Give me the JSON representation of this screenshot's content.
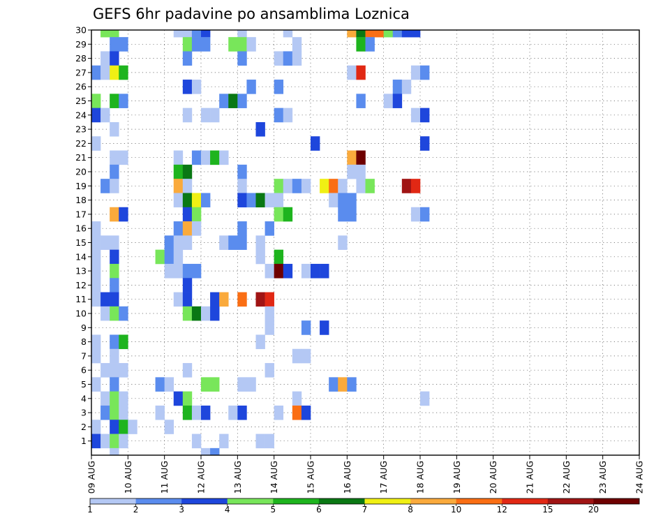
{
  "chart_data": {
    "type": "heatmap",
    "title": "GEFS 6hr padavine po ansamblima Loznica",
    "x_tick_labels": [
      "09 AUG",
      "10 AUG",
      "11 AUG",
      "12 AUG",
      "13 AUG",
      "14 AUG",
      "15 AUG",
      "16 AUG",
      "17 AUG",
      "18 AUG",
      "19 AUG",
      "20 AUG",
      "21 AUG",
      "22 AUG",
      "23 AUG",
      "24 AUG"
    ],
    "y_range": [
      0,
      30
    ],
    "y_tick_labels": [
      "1",
      "2",
      "3",
      "4",
      "5",
      "6",
      "7",
      "8",
      "9",
      "10",
      "11",
      "12",
      "13",
      "14",
      "15",
      "16",
      "17",
      "18",
      "19",
      "20",
      "21",
      "22",
      "23",
      "24",
      "25",
      "26",
      "27",
      "28",
      "29",
      "30"
    ],
    "step_hours": 6,
    "grid": "dotted",
    "legend": {
      "placement": "bottom",
      "labels": [
        "1",
        "2",
        "3",
        "4",
        "5",
        "6",
        "7",
        "8",
        "10",
        "12",
        "15",
        "20"
      ],
      "colors": [
        "#b4c8f4",
        "#5a8cee",
        "#1e46dc",
        "#78e65a",
        "#1eb41e",
        "#0a7814",
        "#f0f014",
        "#faaa3c",
        "#fa6e14",
        "#e12814",
        "#a01414",
        "#6e0000"
      ]
    },
    "level_colors": {
      "1": "#b4c8f4",
      "2": "#5a8cee",
      "3": "#1e46dc",
      "4": "#78e65a",
      "5": "#1eb41e",
      "6": "#0a7814",
      "7": "#f0f014",
      "8": "#faaa3c",
      "9": "#fa6e14",
      "10": "#e12814",
      "11": "#a01414",
      "12": "#6e0000"
    },
    "cells": [
      [
        30,
        0,
        1,
        4
      ],
      [
        30,
        0,
        2,
        4
      ],
      [
        30,
        0,
        9,
        1
      ],
      [
        30,
        0,
        10,
        1
      ],
      [
        30,
        0,
        11,
        2
      ],
      [
        30,
        0,
        12,
        3
      ],
      [
        30,
        0,
        16,
        1
      ],
      [
        30,
        0,
        21,
        1
      ],
      [
        30,
        0,
        28,
        8
      ],
      [
        30,
        0,
        29,
        6
      ],
      [
        30,
        0,
        30,
        9
      ],
      [
        30,
        0,
        31,
        9
      ],
      [
        30,
        0,
        32,
        4
      ],
      [
        30,
        0,
        33,
        2
      ],
      [
        30,
        0,
        34,
        3
      ],
      [
        30,
        0,
        35,
        3
      ],
      [
        29,
        0,
        2,
        2
      ],
      [
        29,
        0,
        3,
        2
      ],
      [
        29,
        0,
        10,
        4
      ],
      [
        29,
        0,
        11,
        2
      ],
      [
        29,
        0,
        12,
        2
      ],
      [
        29,
        0,
        15,
        4
      ],
      [
        29,
        0,
        16,
        4
      ],
      [
        29,
        0,
        17,
        1
      ],
      [
        29,
        0,
        22,
        1
      ],
      [
        29,
        0,
        29,
        5
      ],
      [
        29,
        0,
        30,
        2
      ],
      [
        28,
        0,
        1,
        1
      ],
      [
        28,
        0,
        2,
        3
      ],
      [
        28,
        0,
        10,
        2
      ],
      [
        28,
        0,
        16,
        2
      ],
      [
        28,
        0,
        20,
        1
      ],
      [
        28,
        0,
        21,
        2
      ],
      [
        28,
        0,
        22,
        1
      ],
      [
        27,
        0,
        0,
        2
      ],
      [
        27,
        0,
        1,
        1
      ],
      [
        27,
        0,
        2,
        7
      ],
      [
        27,
        0,
        3,
        5
      ],
      [
        27,
        0,
        28,
        1
      ],
      [
        27,
        0,
        29,
        10
      ],
      [
        27,
        0,
        35,
        1
      ],
      [
        27,
        0,
        36,
        2
      ],
      [
        26,
        0,
        10,
        3
      ],
      [
        26,
        0,
        11,
        1
      ],
      [
        26,
        0,
        17,
        2
      ],
      [
        26,
        0,
        20,
        2
      ],
      [
        26,
        0,
        33,
        2
      ],
      [
        26,
        0,
        34,
        1
      ],
      [
        25,
        0,
        0,
        4
      ],
      [
        25,
        0,
        2,
        5
      ],
      [
        25,
        0,
        3,
        2
      ],
      [
        25,
        0,
        14,
        2
      ],
      [
        25,
        0,
        15,
        6
      ],
      [
        25,
        0,
        16,
        2
      ],
      [
        25,
        0,
        29,
        2
      ],
      [
        25,
        0,
        32,
        1
      ],
      [
        25,
        0,
        33,
        3
      ],
      [
        24,
        0,
        0,
        3
      ],
      [
        24,
        0,
        1,
        1
      ],
      [
        24,
        0,
        10,
        1
      ],
      [
        24,
        0,
        12,
        1
      ],
      [
        24,
        0,
        13,
        1
      ],
      [
        24,
        0,
        20,
        2
      ],
      [
        24,
        0,
        21,
        1
      ],
      [
        24,
        0,
        35,
        1
      ],
      [
        24,
        0,
        36,
        3
      ],
      [
        23,
        0,
        2,
        1
      ],
      [
        23,
        0,
        18,
        3
      ],
      [
        22,
        0,
        0,
        1
      ],
      [
        22,
        0,
        24,
        3
      ],
      [
        22,
        0,
        36,
        3
      ],
      [
        21,
        0,
        2,
        1
      ],
      [
        21,
        0,
        3,
        1
      ],
      [
        21,
        0,
        9,
        1
      ],
      [
        21,
        0,
        11,
        2
      ],
      [
        21,
        0,
        12,
        1
      ],
      [
        21,
        0,
        13,
        5
      ],
      [
        21,
        0,
        14,
        1
      ],
      [
        21,
        0,
        28,
        8
      ],
      [
        21,
        0,
        29,
        12
      ],
      [
        20,
        0,
        2,
        2
      ],
      [
        20,
        0,
        9,
        5
      ],
      [
        20,
        0,
        10,
        6
      ],
      [
        20,
        0,
        16,
        2
      ],
      [
        20,
        0,
        28,
        1
      ],
      [
        20,
        0,
        29,
        1
      ],
      [
        19,
        0,
        1,
        2
      ],
      [
        19,
        0,
        2,
        1
      ],
      [
        19,
        0,
        9,
        8
      ],
      [
        19,
        0,
        10,
        1
      ],
      [
        19,
        0,
        16,
        1
      ],
      [
        19,
        0,
        20,
        4
      ],
      [
        19,
        0,
        21,
        1
      ],
      [
        19,
        0,
        22,
        2
      ],
      [
        19,
        0,
        23,
        1
      ],
      [
        19,
        0,
        25,
        7
      ],
      [
        19,
        0,
        26,
        9
      ],
      [
        19,
        0,
        27,
        1
      ],
      [
        19,
        0,
        29,
        1
      ],
      [
        19,
        0,
        30,
        4
      ],
      [
        19,
        0,
        34,
        11
      ],
      [
        19,
        0,
        35,
        10
      ],
      [
        18,
        0,
        9,
        1
      ],
      [
        18,
        0,
        10,
        6
      ],
      [
        18,
        0,
        11,
        7
      ],
      [
        18,
        0,
        12,
        2
      ],
      [
        18,
        0,
        16,
        3
      ],
      [
        18,
        0,
        17,
        2
      ],
      [
        18,
        0,
        18,
        6
      ],
      [
        18,
        0,
        19,
        1
      ],
      [
        18,
        0,
        20,
        1
      ],
      [
        18,
        0,
        26,
        1
      ],
      [
        18,
        0,
        27,
        2
      ],
      [
        18,
        0,
        28,
        2
      ],
      [
        17,
        0,
        2,
        8
      ],
      [
        17,
        0,
        3,
        3
      ],
      [
        17,
        0,
        10,
        3
      ],
      [
        17,
        0,
        11,
        4
      ],
      [
        17,
        0,
        20,
        4
      ],
      [
        17,
        0,
        21,
        5
      ],
      [
        17,
        0,
        27,
        2
      ],
      [
        17,
        0,
        28,
        2
      ],
      [
        17,
        0,
        35,
        1
      ],
      [
        17,
        0,
        36,
        2
      ],
      [
        16,
        0,
        0,
        1
      ],
      [
        16,
        0,
        9,
        2
      ],
      [
        16,
        0,
        10,
        8
      ],
      [
        16,
        0,
        11,
        1
      ],
      [
        16,
        0,
        16,
        2
      ],
      [
        16,
        0,
        19,
        2
      ],
      [
        15,
        0,
        0,
        1
      ],
      [
        15,
        0,
        1,
        1
      ],
      [
        15,
        0,
        2,
        1
      ],
      [
        15,
        0,
        8,
        2
      ],
      [
        15,
        0,
        9,
        1
      ],
      [
        15,
        0,
        10,
        1
      ],
      [
        15,
        0,
        14,
        1
      ],
      [
        15,
        0,
        15,
        2
      ],
      [
        15,
        0,
        16,
        2
      ],
      [
        15,
        0,
        18,
        1
      ],
      [
        15,
        0,
        27,
        1
      ],
      [
        14,
        0,
        0,
        1
      ],
      [
        14,
        0,
        2,
        3
      ],
      [
        14,
        0,
        7,
        4
      ],
      [
        14,
        0,
        8,
        2
      ],
      [
        14,
        0,
        9,
        1
      ],
      [
        14,
        0,
        18,
        1
      ],
      [
        14,
        0,
        20,
        5
      ],
      [
        13,
        0,
        0,
        1
      ],
      [
        13,
        0,
        2,
        4
      ],
      [
        13,
        0,
        8,
        1
      ],
      [
        13,
        0,
        9,
        1
      ],
      [
        13,
        0,
        10,
        2
      ],
      [
        13,
        0,
        11,
        2
      ],
      [
        13,
        0,
        19,
        1
      ],
      [
        13,
        0,
        20,
        12
      ],
      [
        13,
        0,
        21,
        3
      ],
      [
        13,
        0,
        23,
        1
      ],
      [
        13,
        0,
        24,
        3
      ],
      [
        13,
        0,
        25,
        3
      ],
      [
        12,
        0,
        0,
        1
      ],
      [
        12,
        0,
        2,
        2
      ],
      [
        12,
        0,
        10,
        3
      ],
      [
        11,
        0,
        0,
        1
      ],
      [
        11,
        0,
        1,
        3
      ],
      [
        11,
        0,
        2,
        3
      ],
      [
        11,
        0,
        9,
        1
      ],
      [
        11,
        0,
        10,
        3
      ],
      [
        11,
        0,
        13,
        3
      ],
      [
        11,
        0,
        14,
        8
      ],
      [
        11,
        0,
        16,
        9
      ],
      [
        11,
        0,
        18,
        11
      ],
      [
        11,
        0,
        19,
        10
      ],
      [
        10,
        0,
        1,
        1
      ],
      [
        10,
        0,
        2,
        4
      ],
      [
        10,
        0,
        3,
        2
      ],
      [
        10,
        0,
        10,
        4
      ],
      [
        10,
        0,
        11,
        6
      ],
      [
        10,
        0,
        12,
        1
      ],
      [
        10,
        0,
        13,
        3
      ],
      [
        10,
        0,
        19,
        1
      ],
      [
        9,
        0,
        19,
        1
      ],
      [
        9,
        0,
        23,
        2
      ],
      [
        9,
        0,
        25,
        3
      ],
      [
        8,
        0,
        0,
        1
      ],
      [
        8,
        0,
        2,
        2
      ],
      [
        8,
        0,
        3,
        5
      ],
      [
        8,
        0,
        18,
        1
      ],
      [
        7,
        0,
        0,
        1
      ],
      [
        7,
        0,
        2,
        1
      ],
      [
        7,
        0,
        22,
        1
      ],
      [
        7,
        0,
        23,
        1
      ],
      [
        6,
        0,
        1,
        1
      ],
      [
        6,
        0,
        2,
        1
      ],
      [
        6,
        0,
        3,
        1
      ],
      [
        6,
        0,
        10,
        1
      ],
      [
        6,
        0,
        19,
        1
      ],
      [
        5,
        0,
        0,
        1
      ],
      [
        5,
        0,
        2,
        2
      ],
      [
        5,
        0,
        7,
        2
      ],
      [
        5,
        0,
        8,
        1
      ],
      [
        5,
        0,
        12,
        4
      ],
      [
        5,
        0,
        13,
        4
      ],
      [
        5,
        0,
        16,
        1
      ],
      [
        5,
        0,
        17,
        1
      ],
      [
        5,
        0,
        26,
        2
      ],
      [
        5,
        0,
        27,
        8
      ],
      [
        5,
        0,
        28,
        2
      ],
      [
        4,
        0,
        1,
        1
      ],
      [
        4,
        0,
        2,
        4
      ],
      [
        4,
        0,
        3,
        1
      ],
      [
        4,
        0,
        9,
        3
      ],
      [
        4,
        0,
        10,
        4
      ],
      [
        4,
        0,
        22,
        1
      ],
      [
        4,
        0,
        36,
        1
      ],
      [
        3,
        0,
        1,
        2
      ],
      [
        3,
        0,
        2,
        4
      ],
      [
        3,
        0,
        3,
        1
      ],
      [
        3,
        0,
        7,
        1
      ],
      [
        3,
        0,
        10,
        5
      ],
      [
        3,
        0,
        11,
        1
      ],
      [
        3,
        0,
        12,
        3
      ],
      [
        3,
        0,
        15,
        1
      ],
      [
        3,
        0,
        16,
        3
      ],
      [
        3,
        0,
        20,
        1
      ],
      [
        3,
        0,
        22,
        9
      ],
      [
        3,
        0,
        23,
        3
      ],
      [
        2,
        0,
        0,
        1
      ],
      [
        2,
        0,
        2,
        3
      ],
      [
        2,
        0,
        3,
        5
      ],
      [
        2,
        0,
        4,
        1
      ],
      [
        2,
        0,
        8,
        1
      ],
      [
        1,
        0,
        0,
        3
      ],
      [
        1,
        0,
        1,
        1
      ],
      [
        1,
        0,
        2,
        4
      ],
      [
        1,
        0,
        3,
        1
      ],
      [
        1,
        0,
        11,
        1
      ],
      [
        1,
        0,
        14,
        1
      ],
      [
        1,
        0,
        18,
        1
      ],
      [
        1,
        0,
        19,
        1
      ],
      [
        0,
        0,
        2,
        1
      ],
      [
        0,
        0,
        12,
        1
      ],
      [
        0,
        0,
        13,
        2
      ]
    ]
  }
}
